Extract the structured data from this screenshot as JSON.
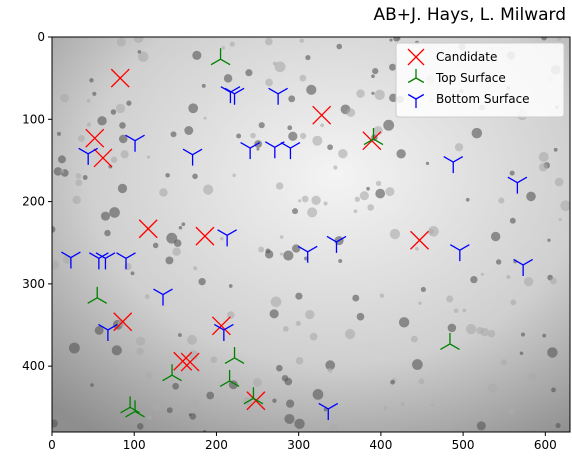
{
  "chart_data": {
    "type": "scatter",
    "title": "AB+J. Hays, L. Milward",
    "xlim": [
      0,
      630
    ],
    "ylim": [
      480,
      0
    ],
    "xticks": [
      0,
      100,
      200,
      300,
      400,
      500,
      600
    ],
    "yticks": [
      0,
      100,
      200,
      300,
      400
    ],
    "legend": "upper right",
    "series": [
      {
        "name": "Candidate",
        "color": "#ff0000",
        "marker": "x",
        "x": [
          83,
          52,
          62,
          117,
          186,
          328,
          389,
          447,
          86,
          206,
          159,
          168,
          248
        ],
        "y": [
          50,
          123,
          147,
          233,
          242,
          95,
          126,
          247,
          346,
          351,
          394,
          395,
          442
        ]
      },
      {
        "name": "Top Surface",
        "color": "#008000",
        "marker": "tri_up",
        "x": [
          205,
          391,
          55,
          484,
          222,
          146,
          216,
          95,
          101,
          245
        ],
        "y": [
          27,
          124,
          317,
          373,
          390,
          411,
          418,
          450,
          455,
          439
        ]
      },
      {
        "name": "Bottom Surface",
        "color": "#0000ff",
        "marker": "tri_down",
        "x": [
          217,
          222,
          275,
          101,
          44,
          171,
          241,
          271,
          290,
          488,
          566,
          213,
          311,
          346,
          23,
          57,
          65,
          90,
          496,
          573,
          135,
          68,
          209,
          336
        ],
        "y": [
          67,
          69,
          69,
          126,
          142,
          143,
          135,
          134,
          135,
          152,
          177,
          241,
          261,
          249,
          268,
          269,
          269,
          269,
          259,
          277,
          313,
          356,
          356,
          452
        ]
      }
    ]
  }
}
